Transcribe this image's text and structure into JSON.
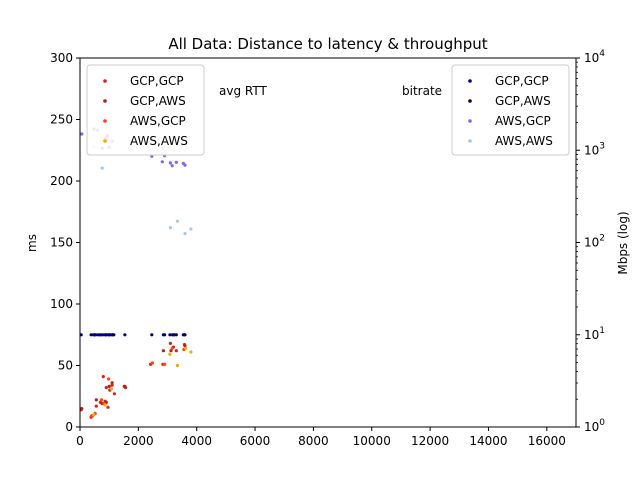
{
  "chart_data": {
    "type": "scatter",
    "title": "All Data: Distance to latency & throughput",
    "xlabel": "",
    "xlim": [
      0,
      17000
    ],
    "xticks": [
      0,
      2000,
      4000,
      6000,
      8000,
      10000,
      12000,
      14000,
      16000
    ],
    "xtick_labels": [
      "0",
      "2000",
      "4000",
      "6000",
      "8000",
      "10000",
      "12000",
      "14000",
      "16000"
    ],
    "left_axis": {
      "ylabel": "ms",
      "ylim": [
        0,
        300
      ],
      "yticks": [
        0,
        50,
        100,
        150,
        200,
        250,
        300
      ],
      "ytick_labels": [
        "0",
        "50",
        "100",
        "150",
        "200",
        "250",
        "300"
      ],
      "annotation": "avg RTT",
      "legend_position": "top-left",
      "series": [
        {
          "name": "GCP,GCP",
          "color": "#e41a1c",
          "points": [
            [
              40,
              14
            ],
            [
              380,
              8
            ],
            [
              560,
              17
            ],
            [
              700,
              20
            ],
            [
              800,
              41
            ],
            [
              860,
              21
            ],
            [
              900,
              32
            ],
            [
              960,
              16
            ],
            [
              1020,
              30
            ],
            [
              1100,
              34
            ],
            [
              1180,
              27
            ],
            [
              1520,
              33
            ],
            [
              1560,
              32
            ],
            [
              2420,
              51
            ],
            [
              2840,
              51
            ],
            [
              3100,
              68
            ],
            [
              3300,
              62
            ],
            [
              3580,
              67
            ]
          ]
        },
        {
          "name": "GCP,AWS",
          "color": "#b22222",
          "points": [
            [
              60,
              15
            ],
            [
              420,
              9
            ],
            [
              560,
              22
            ],
            [
              760,
              19
            ],
            [
              900,
              20
            ],
            [
              1000,
              33
            ],
            [
              1100,
              36
            ],
            [
              1540,
              33
            ],
            [
              2860,
              62
            ],
            [
              3120,
              62
            ],
            [
              3200,
              65
            ],
            [
              3600,
              66
            ]
          ]
        },
        {
          "name": "AWS,GCP",
          "color": "#ff4500",
          "points": [
            [
              400,
              9
            ],
            [
              520,
              11
            ],
            [
              740,
              22
            ],
            [
              820,
              19
            ],
            [
              880,
              235
            ],
            [
              980,
              39
            ],
            [
              2480,
              52
            ],
            [
              2900,
              51
            ],
            [
              3160,
              64
            ],
            [
              3560,
              63
            ]
          ]
        },
        {
          "name": "AWS,AWS",
          "color": "#ffa500",
          "points": [
            [
              470,
              10
            ],
            [
              860,
              18
            ],
            [
              940,
              234
            ],
            [
              1080,
              31
            ],
            [
              3080,
              59
            ],
            [
              3340,
              50
            ],
            [
              3620,
              64
            ],
            [
              3800,
              61
            ]
          ]
        }
      ]
    },
    "right_axis": {
      "ylabel": "Mbps (log)",
      "scale": "log",
      "ylim": [
        1,
        10000
      ],
      "yticks": [
        1,
        10,
        100,
        1000,
        10000
      ],
      "ytick_labels": [
        "10^0",
        "10^1",
        "10^2",
        "10^3",
        "10^4"
      ],
      "annotation": "bitrate",
      "legend_position": "top-right",
      "series": [
        {
          "name": "GCP,GCP",
          "color": "#00008b",
          "points": [
            [
              40,
              10
            ],
            [
              380,
              10
            ],
            [
              460,
              10
            ],
            [
              520,
              10
            ],
            [
              600,
              10
            ],
            [
              660,
              10
            ],
            [
              740,
              10
            ],
            [
              800,
              10
            ],
            [
              860,
              10
            ],
            [
              920,
              10
            ],
            [
              980,
              10
            ],
            [
              1040,
              10
            ],
            [
              1100,
              10
            ],
            [
              1160,
              10
            ],
            [
              1540,
              10
            ],
            [
              2460,
              10
            ],
            [
              2860,
              10
            ],
            [
              3080,
              10
            ],
            [
              3160,
              10
            ],
            [
              3240,
              10
            ],
            [
              3540,
              10
            ],
            [
              3600,
              10
            ]
          ]
        },
        {
          "name": "GCP,AWS",
          "color": "#000066",
          "points": [
            [
              500,
              10
            ],
            [
              700,
              10
            ],
            [
              880,
              10
            ],
            [
              1000,
              10
            ],
            [
              1120,
              10
            ],
            [
              2900,
              10
            ],
            [
              3200,
              10
            ],
            [
              3300,
              10
            ],
            [
              3580,
              10
            ]
          ]
        },
        {
          "name": "AWS,GCP",
          "color": "#7b68ee",
          "points": [
            [
              60,
              1500
            ],
            [
              480,
              1700
            ],
            [
              600,
              1650
            ],
            [
              760,
              1050
            ],
            [
              900,
              1350
            ],
            [
              940,
              1450
            ],
            [
              1000,
              1080
            ],
            [
              1100,
              1250
            ],
            [
              2460,
              860
            ],
            [
              2820,
              750
            ],
            [
              2900,
              870
            ],
            [
              3100,
              730
            ],
            [
              3160,
              680
            ],
            [
              3300,
              740
            ],
            [
              3540,
              720
            ],
            [
              3600,
              690
            ]
          ]
        },
        {
          "name": "AWS,AWS",
          "color": "#a6c8e8",
          "points": [
            [
              480,
              1100
            ],
            [
              760,
              640
            ],
            [
              3100,
              145
            ],
            [
              3340,
              170
            ],
            [
              3600,
              125
            ],
            [
              3800,
              140
            ]
          ]
        }
      ]
    }
  }
}
